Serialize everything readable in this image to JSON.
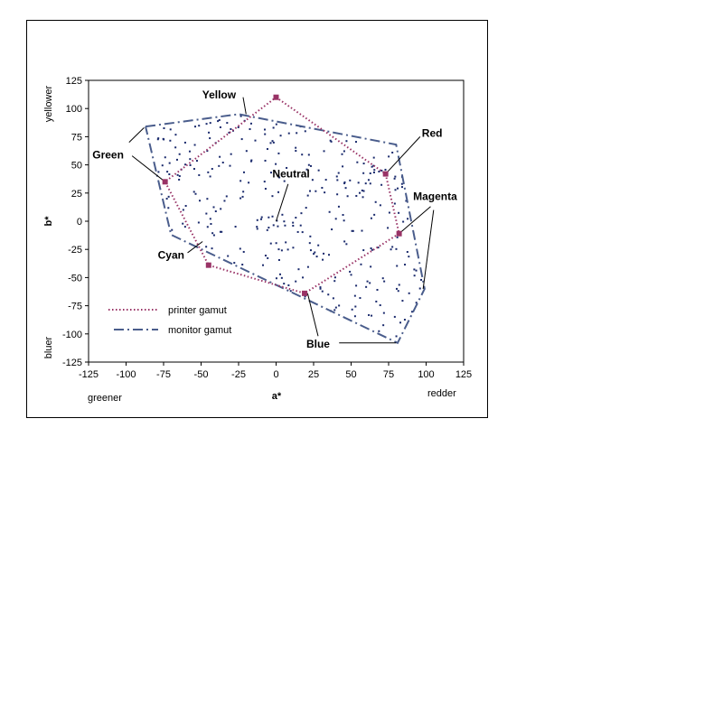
{
  "chart_data": {
    "type": "scatter",
    "xlabel": "a*",
    "ylabel": "b*",
    "xlim": [
      -125,
      125
    ],
    "ylim": [
      -125,
      125
    ],
    "x_ticks": [
      -125,
      -100,
      -75,
      -50,
      -25,
      0,
      25,
      50,
      75,
      100,
      125
    ],
    "y_ticks": [
      -125,
      -100,
      -75,
      -50,
      -25,
      0,
      25,
      50,
      75,
      100,
      125
    ],
    "x_low_label": "greener",
    "x_high_label": "redder",
    "y_high_label": "yellower",
    "y_low_label": "bluer",
    "grid": false,
    "legend_position": "bottom-left",
    "colors": {
      "printer": "#993366",
      "monitor": "#4a5d8c",
      "points": "#1a2a6c"
    },
    "series": [
      {
        "name": "printer gamut",
        "style": "dotted",
        "points": [
          [
            0,
            110
          ],
          [
            73,
            42
          ],
          [
            82,
            -11
          ],
          [
            19,
            -64
          ],
          [
            -45,
            -39
          ],
          [
            -74,
            35
          ],
          [
            0,
            110
          ]
        ]
      },
      {
        "name": "monitor gamut",
        "style": "dash-dot",
        "points": [
          [
            -87,
            84
          ],
          [
            -25,
            95
          ],
          [
            80,
            68
          ],
          [
            99,
            -60
          ],
          [
            81,
            -108
          ],
          [
            -70,
            -12
          ],
          [
            -87,
            84
          ]
        ]
      }
    ],
    "primaries": [
      {
        "label": "Yellow",
        "a": 0,
        "b": 110,
        "text_at": [
          -38,
          112
        ]
      },
      {
        "label": "Red",
        "a": 73,
        "b": 42,
        "text_at": [
          104,
          78
        ]
      },
      {
        "label": "Green",
        "a": -74,
        "b": 35,
        "text_at": [
          -112,
          59
        ]
      },
      {
        "label": "Neutral",
        "a": 0,
        "b": 0,
        "text_at": [
          10,
          42
        ]
      },
      {
        "label": "Magenta",
        "a": 82,
        "b": -11,
        "text_at": [
          106,
          22
        ]
      },
      {
        "label": "Cyan",
        "a": -45,
        "b": -39,
        "text_at": [
          -70,
          -30
        ]
      },
      {
        "label": "Blue",
        "a": 19,
        "b": -64,
        "text_at": [
          28,
          -109
        ]
      }
    ],
    "leader_lines": [
      {
        "label": "Yellow",
        "from": [
          -22,
          110
        ],
        "to": [
          -20,
          95
        ]
      },
      {
        "label": "Red",
        "from": [
          96,
          75
        ],
        "to": [
          73,
          42
        ]
      },
      {
        "label": "Green",
        "from": [
          -96,
          58
        ],
        "to": [
          -74,
          35
        ]
      },
      {
        "label": "Neutral",
        "from": [
          8,
          33
        ],
        "to": [
          0,
          0
        ]
      },
      {
        "label": "Magenta",
        "from": [
          103,
          13
        ],
        "to": [
          82,
          -11
        ]
      },
      {
        "label": "Cyan",
        "from": [
          -59,
          -28
        ],
        "to": [
          -49,
          -18
        ]
      },
      {
        "label": "Blue",
        "from": [
          21,
          -64
        ],
        "to": [
          28,
          -102
        ]
      },
      {
        "label": "Blue",
        "from": [
          42,
          -108
        ],
        "to": [
          80,
          -108
        ]
      },
      {
        "label": "Green",
        "from": [
          -88,
          83
        ],
        "to": [
          -98,
          70
        ]
      },
      {
        "label": "Magenta",
        "from": [
          105,
          10
        ],
        "to": [
          98,
          -60
        ]
      }
    ]
  },
  "legend": {
    "printer_label": "printer gamut",
    "monitor_label": "monitor gamut"
  }
}
